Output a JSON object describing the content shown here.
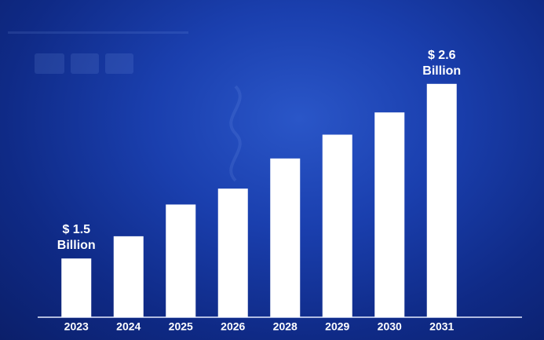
{
  "chart_data": {
    "type": "bar",
    "categories": [
      "2023",
      "2024",
      "2025",
      "2026",
      "2028",
      "2029",
      "2030",
      "2031"
    ],
    "values": [
      1.5,
      1.64,
      1.84,
      1.94,
      2.13,
      2.28,
      2.42,
      2.6
    ],
    "value_labels": [
      "$ 1.5 Billion",
      null,
      null,
      null,
      null,
      null,
      null,
      "$ 2.6 Billion"
    ],
    "color": "#ffffff",
    "ylim": [
      1.13,
      2.96
    ]
  }
}
